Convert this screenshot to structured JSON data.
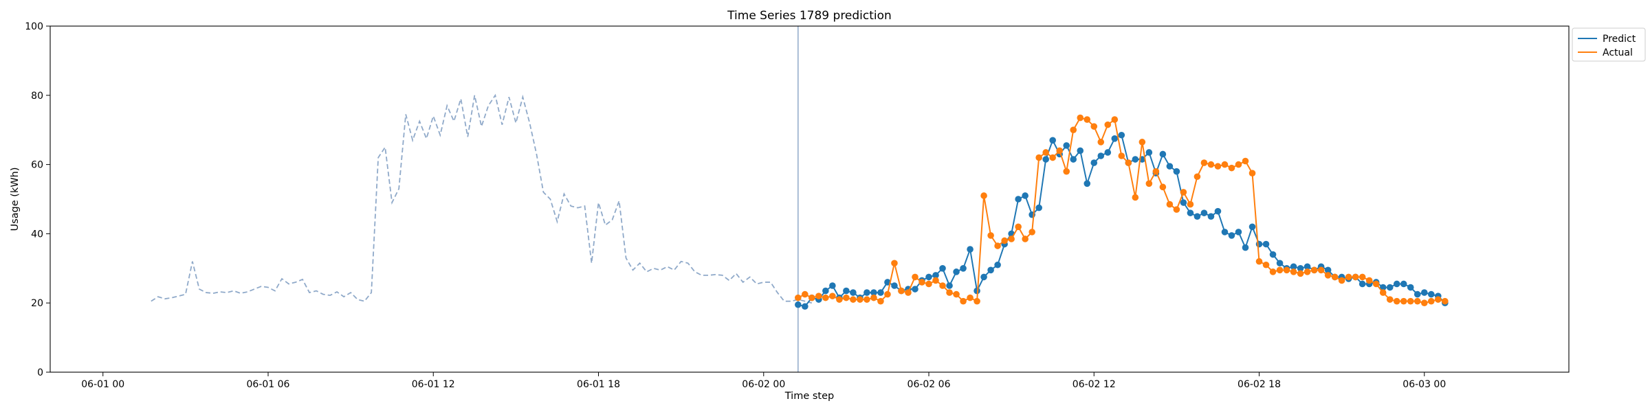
{
  "chart_data": {
    "type": "line",
    "title": "Time Series 1789 prediction",
    "xlabel": "Time step",
    "ylabel": "Usage (kWh)",
    "ylim": [
      0,
      100
    ],
    "xlim": [
      "2023-05-31T22:05",
      "2023-06-03T05:15"
    ],
    "x_ticks": [
      "06-01 00",
      "06-01 06",
      "06-01 12",
      "06-01 18",
      "06-02 00",
      "06-02 06",
      "06-02 12",
      "06-02 18",
      "06-03 00"
    ],
    "x_tick_times": [
      "2023-06-01T00:00",
      "2023-06-01T06:00",
      "2023-06-01T12:00",
      "2023-06-01T18:00",
      "2023-06-02T00:00",
      "2023-06-02T06:00",
      "2023-06-02T12:00",
      "2023-06-02T18:00",
      "2023-06-03T00:00"
    ],
    "y_ticks": [
      "0",
      "20",
      "40",
      "60",
      "80",
      "100"
    ],
    "grid": false,
    "legend_position": "upper-right-outside",
    "prediction_start": "2023-06-02T01:15",
    "colors": {
      "predict": "#1f77b4",
      "actual": "#ff7f0e",
      "history": "#8fa9c9",
      "divider": "#8fa9c9"
    },
    "history": {
      "start": "2023-06-01T01:45",
      "step_minutes": 15,
      "values": [
        20.5,
        21.8,
        21.2,
        21.5,
        22.0,
        22.5,
        32.0,
        24.0,
        23.0,
        22.8,
        23.2,
        23.0,
        23.5,
        22.8,
        23.2,
        24.0,
        24.8,
        24.5,
        23.5,
        27.0,
        25.5,
        26.0,
        26.8,
        23.0,
        23.5,
        22.5,
        22.2,
        23.2,
        21.8,
        23.0,
        21.0,
        20.5,
        23.0,
        62.0,
        65.0,
        49.0,
        53.0,
        74.5,
        67.0,
        72.5,
        67.5,
        74.0,
        68.5,
        77.0,
        72.5,
        79.0,
        68.0,
        80.0,
        71.0,
        77.0,
        80.0,
        71.5,
        79.5,
        72.0,
        79.5,
        72.0,
        63.0,
        52.0,
        50.0,
        43.5,
        51.5,
        48.0,
        47.5,
        48.0,
        31.5,
        49.0,
        42.5,
        44.0,
        49.5,
        33.0,
        29.5,
        31.5,
        29.0,
        30.0,
        29.5,
        30.5,
        29.5,
        32.0,
        31.5,
        29.0,
        28.0,
        28.0,
        28.2,
        28.0,
        26.5,
        28.5,
        26.0,
        27.5,
        25.5,
        26.0,
        26.0,
        23.0,
        20.5,
        20.5,
        21.0,
        20.5,
        20.0
      ]
    },
    "series": [
      {
        "name": "Predict",
        "start": "2023-06-02T01:15",
        "step_minutes": 15,
        "values": [
          19.5,
          19.0,
          21.5,
          21.0,
          23.5,
          25.0,
          21.5,
          23.5,
          23.0,
          21.5,
          23.0,
          23.0,
          23.0,
          26.0,
          25.0,
          23.5,
          24.0,
          24.0,
          26.5,
          27.5,
          28.0,
          30.0,
          25.0,
          29.0,
          30.0,
          35.5,
          23.5,
          27.5,
          29.5,
          31.0,
          37.0,
          40.0,
          50.0,
          51.0,
          45.5,
          47.5,
          61.5,
          67.0,
          63.0,
          65.5,
          61.5,
          64.0,
          54.5,
          60.5,
          62.5,
          63.5,
          67.5,
          68.5,
          60.5,
          61.5,
          61.5,
          63.5,
          57.5,
          63.0,
          59.5,
          58.0,
          49.0,
          46.0,
          45.0,
          46.0,
          45.0,
          46.5,
          40.5,
          39.5,
          40.5,
          36.0,
          42.0,
          37.0,
          37.0,
          34.0,
          31.5,
          30.0,
          30.5,
          30.0,
          30.5,
          29.5,
          30.5,
          29.5,
          27.5,
          27.5,
          27.0,
          27.5,
          25.5,
          25.5,
          26.0,
          24.5,
          24.5,
          25.5,
          25.5,
          24.5,
          22.5,
          23.0,
          22.5,
          22.0,
          20.0
        ]
      },
      {
        "name": "Actual",
        "start": "2023-06-02T01:15",
        "step_minutes": 15,
        "values": [
          21.5,
          22.5,
          21.5,
          22.0,
          21.5,
          22.0,
          21.0,
          21.5,
          21.0,
          21.0,
          21.0,
          21.5,
          20.5,
          22.5,
          31.5,
          23.5,
          23.0,
          27.5,
          26.0,
          25.5,
          26.5,
          25.0,
          23.0,
          22.5,
          20.5,
          21.5,
          20.5,
          51.0,
          39.5,
          36.5,
          38.0,
          38.5,
          42.0,
          38.5,
          40.5,
          62.0,
          63.5,
          62.0,
          64.0,
          58.0,
          70.0,
          73.5,
          73.0,
          71.0,
          66.5,
          71.5,
          73.0,
          62.5,
          60.5,
          50.5,
          66.5,
          54.5,
          58.0,
          53.5,
          48.5,
          47.0,
          52.0,
          48.5,
          56.5,
          60.5,
          60.0,
          59.5,
          60.0,
          59.0,
          60.0,
          61.0,
          57.5,
          32.0,
          31.0,
          29.0,
          29.5,
          29.5,
          29.0,
          28.5,
          29.0,
          29.5,
          29.5,
          28.0,
          27.5,
          26.5,
          27.5,
          27.5,
          27.5,
          26.5,
          25.5,
          23.0,
          21.0,
          20.5,
          20.5,
          20.5,
          20.5,
          20.0,
          20.5,
          21.0,
          20.5
        ]
      }
    ]
  }
}
